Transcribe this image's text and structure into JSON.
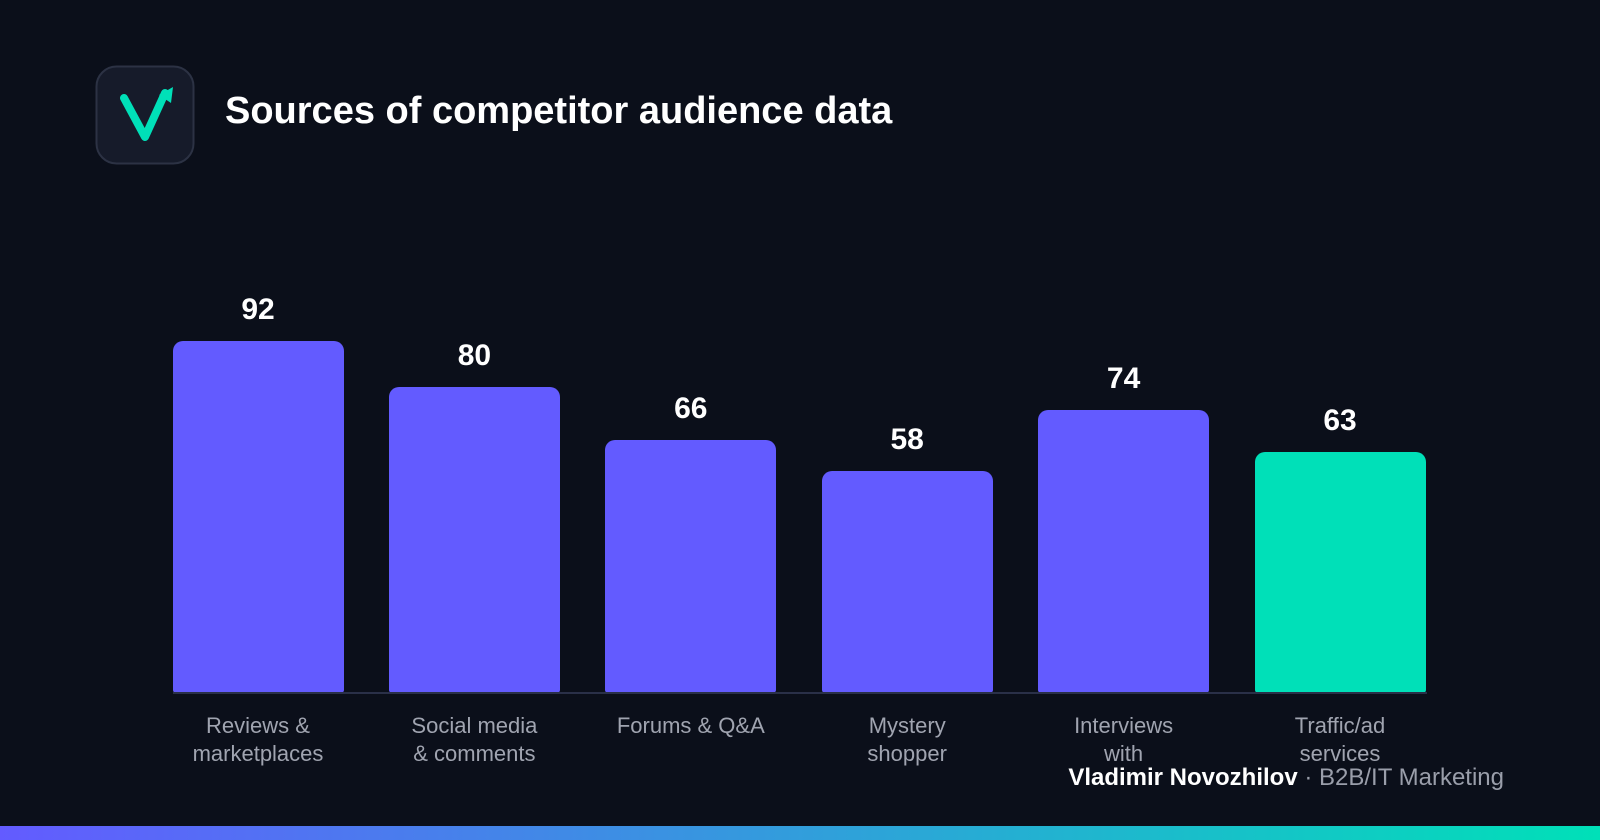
{
  "chart_data": {
    "type": "bar",
    "title": "Sources of competitor audience data",
    "categories": [
      "Reviews &\nmarketplaces",
      "Social media\n& comments",
      "Forums & Q&A",
      "Mystery\nshopper",
      "Interviews\nwith",
      "Traffic/ad\nservices"
    ],
    "values": [
      92,
      80,
      66,
      58,
      74,
      63
    ],
    "colors": [
      "#635bff",
      "#635bff",
      "#635bff",
      "#635bff",
      "#635bff",
      "#00e0b8"
    ]
  },
  "footer": {
    "author": "Vladimir Novozhilov",
    "tagline": "· B2B/IT Marketing"
  }
}
